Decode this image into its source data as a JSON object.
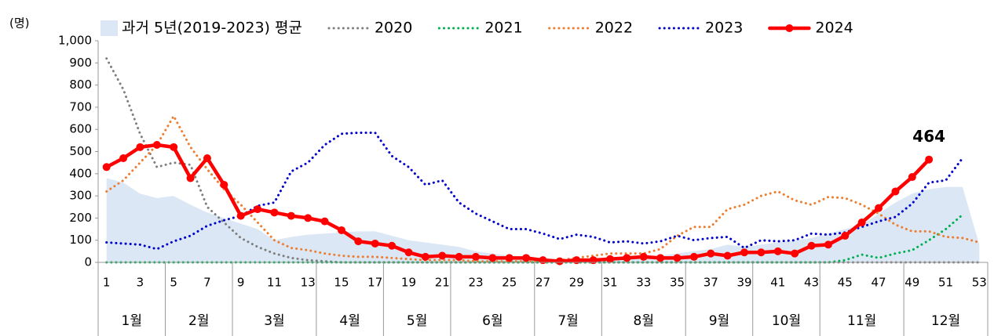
{
  "chart_data": {
    "type": "line",
    "y_label": "(명)",
    "categories": [
      "1",
      null,
      "3",
      null,
      "5",
      null,
      "7",
      null,
      "9",
      null,
      "11",
      null,
      "13",
      null,
      "15",
      null,
      "17",
      null,
      "19",
      null,
      "21",
      null,
      "23",
      null,
      "25",
      null,
      "27",
      null,
      "29",
      null,
      "31",
      null,
      "33",
      null,
      "35",
      null,
      "37",
      null,
      "39",
      null,
      "41",
      null,
      "43",
      null,
      "45",
      null,
      "47",
      null,
      "49",
      null,
      "51",
      null,
      "53"
    ],
    "month_of_week": [
      "1월",
      "1월",
      "1월",
      "1월",
      "2월",
      "2월",
      "2월",
      "2월",
      "3월",
      "3월",
      "3월",
      "3월",
      "3월",
      "4월",
      "4월",
      "4월",
      "4월",
      "5월",
      "5월",
      "5월",
      "5월",
      "6월",
      "6월",
      "6월",
      "6월",
      "6월",
      "7월",
      "7월",
      "7월",
      "7월",
      "8월",
      "8월",
      "8월",
      "8월",
      "8월",
      "9월",
      "9월",
      "9월",
      "9월",
      "10월",
      "10월",
      "10월",
      "10월",
      "11월",
      "11월",
      "11월",
      "11월",
      "11월",
      "12월",
      "12월",
      "12월",
      "12월",
      "12월"
    ],
    "ylim": [
      0,
      1000
    ],
    "yticks": [
      0,
      100,
      200,
      300,
      400,
      500,
      600,
      700,
      800,
      900,
      {
        "value": 1000,
        "label": "1,000"
      }
    ],
    "grid": false,
    "series": [
      {
        "name": "과거 5년(2019-2023) 평균",
        "kind": "area",
        "color": "#dbe7f5",
        "values": [
          380,
          360,
          310,
          290,
          300,
          260,
          225,
          200,
          175,
          150,
          100,
          115,
          125,
          130,
          135,
          140,
          140,
          120,
          100,
          90,
          80,
          70,
          50,
          40,
          30,
          25,
          20,
          15,
          15,
          15,
          20,
          20,
          25,
          30,
          40,
          50,
          60,
          80,
          70,
          80,
          90,
          100,
          110,
          130,
          150,
          170,
          220,
          270,
          310,
          330,
          340,
          340,
          80
        ]
      },
      {
        "name": "2020",
        "style": "dotted",
        "color": "#7f7f7f",
        "values": [
          920,
          780,
          580,
          430,
          450,
          440,
          250,
          180,
          110,
          70,
          40,
          20,
          10,
          5,
          0,
          0,
          0,
          0,
          0,
          0,
          0,
          0,
          0,
          0,
          0,
          0,
          0,
          0,
          0,
          0,
          0,
          0,
          0,
          0,
          0,
          0,
          0,
          0,
          0,
          0,
          0,
          0,
          0,
          0,
          0,
          0,
          0,
          0,
          0,
          0,
          0,
          0,
          0
        ]
      },
      {
        "name": "2021",
        "style": "dotted",
        "color": "#00b050",
        "values": [
          0,
          0,
          0,
          0,
          0,
          0,
          0,
          0,
          0,
          0,
          0,
          0,
          0,
          0,
          0,
          0,
          0,
          0,
          0,
          0,
          0,
          0,
          0,
          0,
          0,
          0,
          0,
          0,
          0,
          0,
          0,
          0,
          0,
          0,
          0,
          0,
          0,
          0,
          0,
          0,
          0,
          0,
          0,
          0,
          10,
          35,
          20,
          40,
          55,
          100,
          150,
          215,
          null
        ]
      },
      {
        "name": "2022",
        "style": "dotted",
        "color": "#ed7d31",
        "values": [
          320,
          370,
          450,
          530,
          660,
          520,
          420,
          330,
          260,
          180,
          100,
          65,
          55,
          40,
          30,
          25,
          25,
          20,
          15,
          10,
          10,
          10,
          5,
          5,
          5,
          5,
          5,
          10,
          20,
          30,
          40,
          40,
          40,
          60,
          120,
          160,
          160,
          240,
          260,
          300,
          320,
          280,
          260,
          295,
          290,
          260,
          220,
          170,
          140,
          140,
          115,
          110,
          90
        ]
      },
      {
        "name": "2023",
        "style": "dotted",
        "color": "#0000cc",
        "values": [
          90,
          85,
          80,
          60,
          95,
          120,
          165,
          190,
          210,
          255,
          270,
          410,
          450,
          530,
          580,
          585,
          585,
          480,
          430,
          350,
          370,
          270,
          220,
          185,
          150,
          150,
          130,
          105,
          125,
          115,
          90,
          95,
          85,
          95,
          120,
          100,
          110,
          115,
          65,
          100,
          95,
          100,
          130,
          125,
          135,
          160,
          185,
          205,
          265,
          360,
          370,
          470,
          null
        ]
      },
      {
        "name": "2024",
        "style": "solid",
        "markers": true,
        "color": "#ff0000",
        "values": [
          430,
          470,
          520,
          530,
          520,
          380,
          470,
          350,
          210,
          240,
          225,
          210,
          200,
          185,
          145,
          95,
          85,
          75,
          45,
          25,
          30,
          25,
          25,
          20,
          20,
          20,
          10,
          5,
          10,
          10,
          15,
          20,
          25,
          20,
          20,
          25,
          40,
          30,
          45,
          45,
          50,
          40,
          75,
          80,
          120,
          180,
          245,
          320,
          385,
          464,
          null,
          null,
          null
        ],
        "labelled_index": 49
      }
    ]
  }
}
